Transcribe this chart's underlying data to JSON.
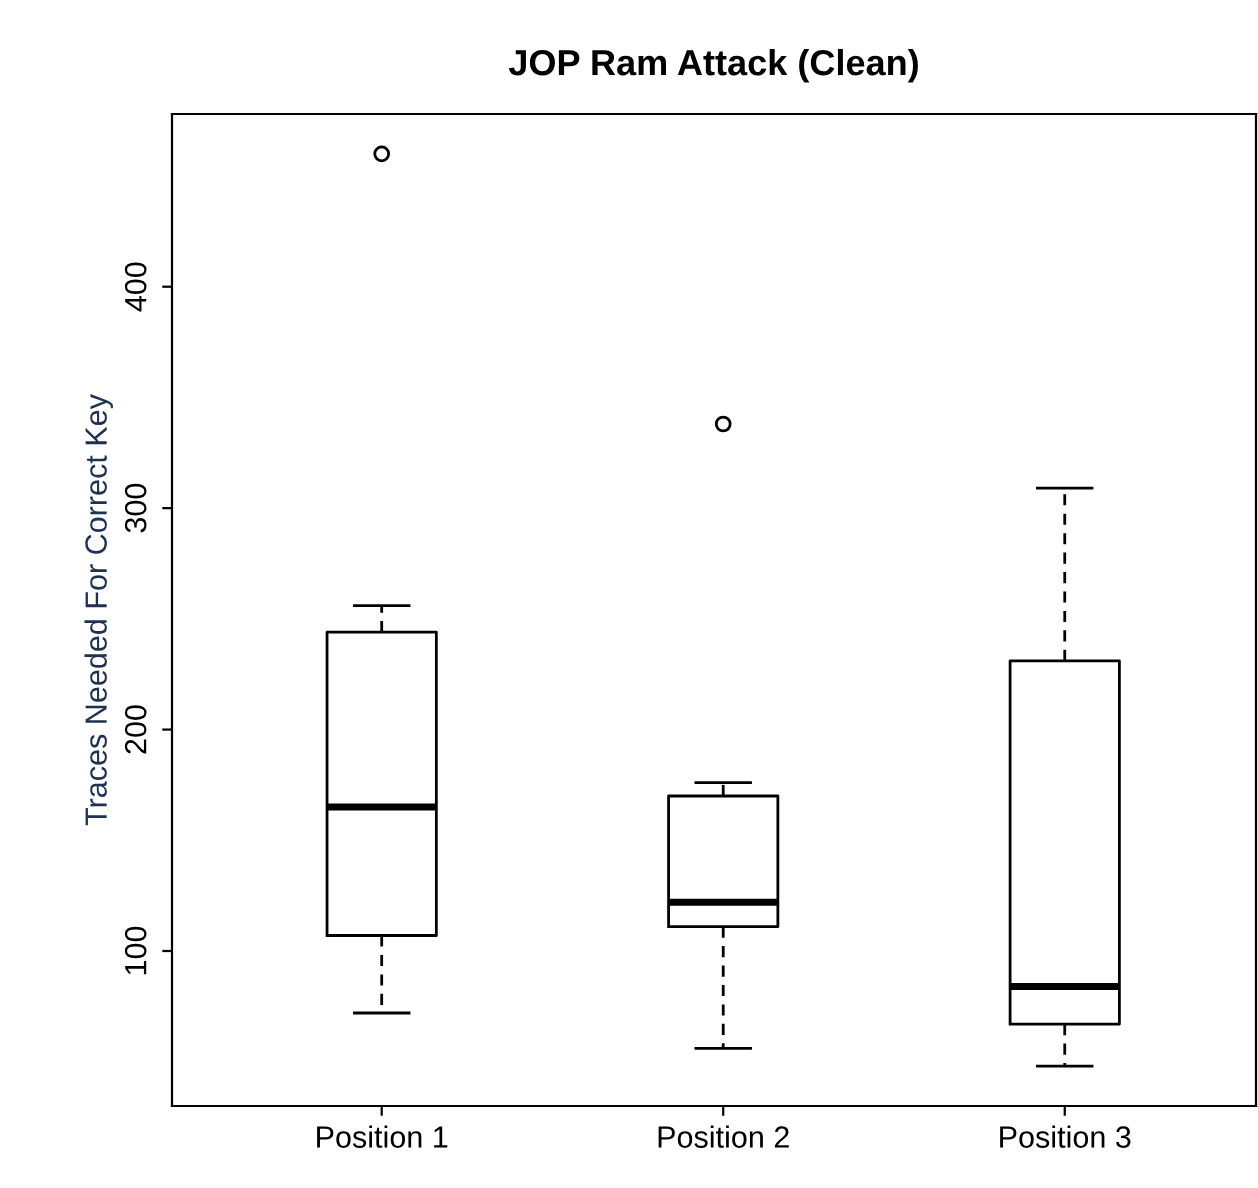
{
  "chart_data": {
    "type": "box",
    "title": "JOP Ram Attack (Clean)",
    "ylabel": "Traces Needed For Correct Key",
    "categories": [
      "Position 1",
      "Position 2",
      "Position 3"
    ],
    "boxes": [
      {
        "low": 72,
        "q1": 107,
        "median": 165,
        "q3": 244,
        "high": 256,
        "outliers": [
          460
        ]
      },
      {
        "low": 56,
        "q1": 111,
        "median": 122,
        "q3": 170,
        "high": 176,
        "outliers": [
          338
        ]
      },
      {
        "low": 48,
        "q1": 67,
        "median": 84,
        "q3": 231,
        "high": 309
      }
    ],
    "ylim": [
      30,
      478
    ],
    "yticks": [
      100,
      200,
      300,
      400
    ],
    "grid": false
  }
}
